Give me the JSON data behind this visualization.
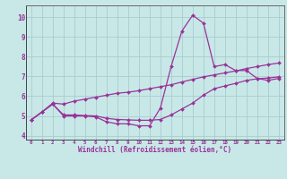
{
  "xlabel": "Windchill (Refroidissement éolien,°C)",
  "background_color": "#c8e8e8",
  "grid_color": "#aacccc",
  "line_color": "#993399",
  "marker": "D",
  "markersize": 2.0,
  "linewidth": 0.9,
  "xticks": [
    0,
    1,
    2,
    3,
    4,
    5,
    6,
    7,
    8,
    9,
    10,
    11,
    12,
    13,
    14,
    15,
    16,
    17,
    18,
    19,
    20,
    21,
    22,
    23
  ],
  "yticks": [
    4,
    5,
    6,
    7,
    8,
    9,
    10
  ],
  "xlim": [
    -0.5,
    23.5
  ],
  "ylim": [
    3.8,
    10.6
  ],
  "line1_y": [
    4.8,
    5.2,
    5.6,
    5.0,
    5.0,
    5.0,
    4.95,
    4.7,
    4.6,
    4.6,
    4.5,
    4.5,
    5.4,
    7.5,
    9.3,
    10.1,
    9.7,
    7.5,
    7.6,
    7.3,
    7.3,
    6.9,
    6.8,
    6.9
  ],
  "line2_y": [
    4.8,
    5.2,
    5.65,
    5.6,
    5.75,
    5.85,
    5.95,
    6.05,
    6.15,
    6.2,
    6.28,
    6.38,
    6.48,
    6.58,
    6.72,
    6.85,
    6.98,
    7.08,
    7.18,
    7.28,
    7.4,
    7.5,
    7.6,
    7.68
  ],
  "line3_y": [
    4.8,
    5.2,
    5.6,
    5.05,
    5.05,
    5.02,
    5.0,
    4.88,
    4.82,
    4.8,
    4.78,
    4.78,
    4.82,
    5.05,
    5.35,
    5.65,
    6.05,
    6.38,
    6.52,
    6.65,
    6.8,
    6.88,
    6.92,
    6.98
  ]
}
